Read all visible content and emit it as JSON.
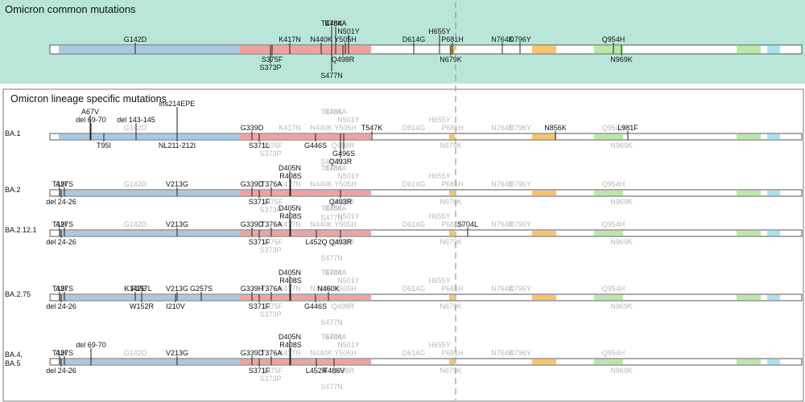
{
  "top_panel": {
    "title": "Omicron common mutations",
    "labels": [
      {
        "text": "G142D",
        "pos": "above",
        "row": 1
      },
      {
        "text": "K417N",
        "pos": "above",
        "row": 1
      },
      {
        "text": "N440K",
        "pos": "above",
        "row": 1
      },
      {
        "text": "T478K",
        "pos": "above",
        "row": 3
      },
      {
        "text": "E484A",
        "pos": "above",
        "row": 3
      },
      {
        "text": "N501Y",
        "pos": "above",
        "row": 2
      },
      {
        "text": "Y505H",
        "pos": "above",
        "row": 1
      },
      {
        "text": "D614G",
        "pos": "above",
        "row": 1
      },
      {
        "text": "H655Y",
        "pos": "above",
        "row": 2
      },
      {
        "text": "P681H",
        "pos": "above",
        "row": 1
      },
      {
        "text": "N764K",
        "pos": "above",
        "row": 1
      },
      {
        "text": "D796Y",
        "pos": "above",
        "row": 1
      },
      {
        "text": "Q954H",
        "pos": "above",
        "row": 1
      },
      {
        "text": "S375F",
        "pos": "below",
        "row": 1
      },
      {
        "text": "Q498R",
        "pos": "below",
        "row": 1
      },
      {
        "text": "N679K",
        "pos": "below",
        "row": 1
      },
      {
        "text": "N969K",
        "pos": "below",
        "row": 1
      },
      {
        "text": "S373P",
        "pos": "below",
        "row": 2
      },
      {
        "text": "S477N",
        "pos": "below",
        "row": 3
      }
    ]
  },
  "bottom_panel": {
    "title": "Omicron lineage specific mutations",
    "lineages": [
      {
        "name": "BA.1",
        "labels": [
          {
            "text": "A67V",
            "pos": "above",
            "row": 3
          },
          {
            "text": "del 69-70",
            "pos": "above",
            "row": 2
          },
          {
            "text": "del 143-145",
            "pos": "above",
            "row": 2
          },
          {
            "text": "ins214EPE",
            "pos": "above",
            "row": 4
          },
          {
            "text": "G339D",
            "pos": "above",
            "row": 1
          },
          {
            "text": "T547K",
            "pos": "above",
            "row": 1
          },
          {
            "text": "N856K",
            "pos": "above",
            "row": 1
          },
          {
            "text": "L981F",
            "pos": "above",
            "row": 1
          },
          {
            "text": "T95I",
            "pos": "below",
            "row": 1
          },
          {
            "text": "NL211-212I",
            "pos": "below",
            "row": 1
          },
          {
            "text": "S371L",
            "pos": "below",
            "row": 1
          },
          {
            "text": "G446S",
            "pos": "below",
            "row": 1
          },
          {
            "text": "G496S",
            "pos": "below",
            "row": 2
          },
          {
            "text": "Q493R",
            "pos": "below",
            "row": 3
          }
        ]
      },
      {
        "name": "BA.2",
        "labels": [
          {
            "text": "T19I",
            "pos": "above",
            "row": 1
          },
          {
            "text": "A27S",
            "pos": "above",
            "row": 1
          },
          {
            "text": "V213G",
            "pos": "above",
            "row": 1
          },
          {
            "text": "G339D",
            "pos": "above",
            "row": 1
          },
          {
            "text": "T376A",
            "pos": "above",
            "row": 1
          },
          {
            "text": "R408S",
            "pos": "above",
            "row": 2
          },
          {
            "text": "D405N",
            "pos": "above",
            "row": 3
          },
          {
            "text": "del 24-26",
            "pos": "below",
            "row": 1
          },
          {
            "text": "S371F",
            "pos": "below",
            "row": 1
          },
          {
            "text": "Q493R",
            "pos": "below",
            "row": 1
          }
        ]
      },
      {
        "name": "BA.2.12.1",
        "labels": [
          {
            "text": "T19I",
            "pos": "above",
            "row": 1
          },
          {
            "text": "A27S",
            "pos": "above",
            "row": 1
          },
          {
            "text": "V213G",
            "pos": "above",
            "row": 1
          },
          {
            "text": "G339D",
            "pos": "above",
            "row": 1
          },
          {
            "text": "T376A",
            "pos": "above",
            "row": 1
          },
          {
            "text": "R408S",
            "pos": "above",
            "row": 2
          },
          {
            "text": "D405N",
            "pos": "above",
            "row": 3
          },
          {
            "text": "S704L",
            "pos": "above",
            "row": 1
          },
          {
            "text": "del 24-26",
            "pos": "below",
            "row": 1
          },
          {
            "text": "S371F",
            "pos": "below",
            "row": 1
          },
          {
            "text": "L452Q",
            "pos": "below",
            "row": 1
          },
          {
            "text": "Q493R",
            "pos": "below",
            "row": 1
          }
        ]
      },
      {
        "name": "BA.2.75",
        "labels": [
          {
            "text": "T19I",
            "pos": "above",
            "row": 1
          },
          {
            "text": "A27S",
            "pos": "above",
            "row": 1
          },
          {
            "text": "K147E",
            "pos": "above",
            "row": 1
          },
          {
            "text": "F157L",
            "pos": "above",
            "row": 1
          },
          {
            "text": "V213G",
            "pos": "above",
            "row": 1
          },
          {
            "text": "G257S",
            "pos": "above",
            "row": 1
          },
          {
            "text": "G339H",
            "pos": "above",
            "row": 1
          },
          {
            "text": "T376A",
            "pos": "above",
            "row": 1
          },
          {
            "text": "R408S",
            "pos": "above",
            "row": 2
          },
          {
            "text": "D405N",
            "pos": "above",
            "row": 3
          },
          {
            "text": "N460K",
            "pos": "above",
            "row": 1
          },
          {
            "text": "del 24-26",
            "pos": "below",
            "row": 1
          },
          {
            "text": "W152R",
            "pos": "below",
            "row": 1
          },
          {
            "text": "I210V",
            "pos": "below",
            "row": 1
          },
          {
            "text": "S371F",
            "pos": "below",
            "row": 1
          },
          {
            "text": "G446S",
            "pos": "below",
            "row": 1
          }
        ]
      },
      {
        "name": "BA.4,\nBA.5",
        "labels": [
          {
            "text": "T19I",
            "pos": "above",
            "row": 1
          },
          {
            "text": "A27S",
            "pos": "above",
            "row": 1
          },
          {
            "text": "del 69-70",
            "pos": "above",
            "row": 2
          },
          {
            "text": "V213G",
            "pos": "above",
            "row": 1
          },
          {
            "text": "G339D",
            "pos": "above",
            "row": 1
          },
          {
            "text": "T376A",
            "pos": "above",
            "row": 1
          },
          {
            "text": "R408S",
            "pos": "above",
            "row": 2
          },
          {
            "text": "D405N",
            "pos": "above",
            "row": 3
          },
          {
            "text": "del 24-26",
            "pos": "below",
            "row": 1
          },
          {
            "text": "S371F",
            "pos": "below",
            "row": 1
          },
          {
            "text": "L452R",
            "pos": "below",
            "row": 1
          },
          {
            "text": "F486V",
            "pos": "below",
            "row": 1
          }
        ]
      }
    ]
  },
  "colors": {
    "top_background": "#b9e6d8",
    "bar_fill": "#ffffff",
    "bar_border": "#555555",
    "ntd": "#a9c9e3",
    "rbd": "#f2a1a1",
    "fusion": "#f6c46a",
    "hr1": "#b9e8a8",
    "hr2": "#a8e2f0",
    "ghost": "#b8b8b8",
    "text": "#111111",
    "dashed": "#999999"
  }
}
